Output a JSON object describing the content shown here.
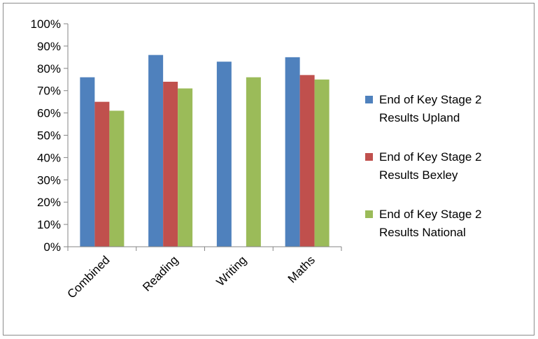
{
  "chart_data": {
    "type": "bar",
    "title": "",
    "xlabel": "",
    "ylabel": "",
    "categories": [
      "Combined",
      "Reading",
      "Writing",
      "Maths"
    ],
    "ylim": [
      0,
      100
    ],
    "y_tick_step": 10,
    "y_tick_labels": [
      "0%",
      "10%",
      "20%",
      "30%",
      "40%",
      "50%",
      "60%",
      "70%",
      "80%",
      "90%",
      "100%"
    ],
    "grid": false,
    "legend_position": "right",
    "series": [
      {
        "name": "End of Key Stage 2 Results  Upland",
        "legend_lines": [
          "End of Key Stage 2",
          "Results  Upland"
        ],
        "color": "#4F81BD",
        "values": [
          76,
          86,
          83,
          85
        ]
      },
      {
        "name": "End of Key Stage 2 Results  Bexley",
        "legend_lines": [
          "End of Key Stage 2",
          "Results  Bexley"
        ],
        "color": "#C0504D",
        "values": [
          65,
          74,
          null,
          77
        ]
      },
      {
        "name": "End of Key Stage 2 Results  National",
        "legend_lines": [
          "End of Key Stage 2",
          "Results  National"
        ],
        "color": "#9BBB59",
        "values": [
          61,
          71,
          76,
          75
        ]
      }
    ]
  }
}
